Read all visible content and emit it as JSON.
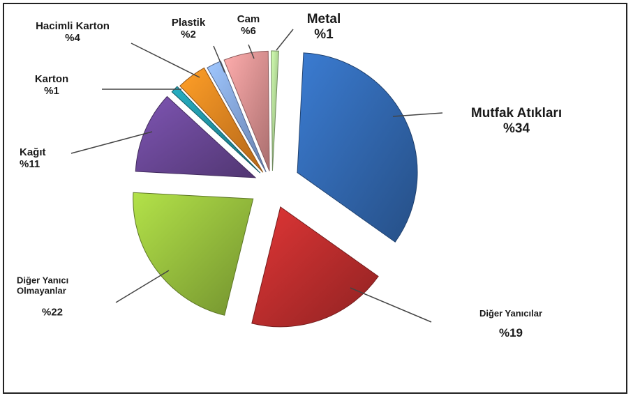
{
  "chart_data": {
    "type": "pie",
    "title": "",
    "slices": [
      {
        "name": "Mutfak Atıkları",
        "label": "Mutfak Atıkları",
        "pct_label": "%34",
        "value": 34,
        "color": "#2f63a8"
      },
      {
        "name": "Diğer Yanıcılar",
        "label": "Diğer Yanıcılar",
        "pct_label": "%19",
        "value": 19,
        "color": "#b32b2b"
      },
      {
        "name": "Diğer Yanıcı Olmayanlar",
        "label": "Diğer Yanıcı Olmayanlar",
        "pct_label": "%22",
        "value": 22,
        "color": "#8fb53a"
      },
      {
        "name": "Kağıt",
        "label": "Kağıt",
        "pct_label": "%11",
        "value": 11,
        "color": "#65448f"
      },
      {
        "name": "Karton",
        "label": "Karton",
        "pct_label": "%1",
        "value": 1,
        "color": "#1f8c9c"
      },
      {
        "name": "Hacimli Karton",
        "label": "Hacimli Karton",
        "pct_label": "%4",
        "value": 4,
        "color": "#e07f1f"
      },
      {
        "name": "Plastik",
        "label": "Plastik",
        "pct_label": "%2",
        "value": 2,
        "color": "#7f9fd8"
      },
      {
        "name": "Cam",
        "label": "Cam",
        "pct_label": "%6",
        "value": 6,
        "color": "#d38a8a"
      },
      {
        "name": "Metal",
        "label": "Metal",
        "pct_label": "%1",
        "value": 1,
        "color": "#a9d18e"
      }
    ],
    "legend": "none"
  },
  "labels": {
    "mutfak": {
      "line1": "Mutfak Atıkları",
      "line2": "%34"
    },
    "diger_yanicilar": {
      "line1": "Diğer Yanıcılar",
      "line2": "%19"
    },
    "diger_yanici_olmayanlar": {
      "line1": "Diğer Yanıcı",
      "line2": "Olmayanlar",
      "line3": "%22"
    },
    "kagit": {
      "line1": "Kağıt",
      "line2": "%11"
    },
    "karton": {
      "line1": "Karton",
      "line2": "%1"
    },
    "hacimli_karton": {
      "line1": "Hacimli Karton",
      "line2": "%4"
    },
    "plastik": {
      "line1": "Plastik",
      "line2": "%2"
    },
    "cam": {
      "line1": "Cam",
      "line2": "%6"
    },
    "metal": {
      "line1": "Metal",
      "line2": "%1"
    }
  }
}
